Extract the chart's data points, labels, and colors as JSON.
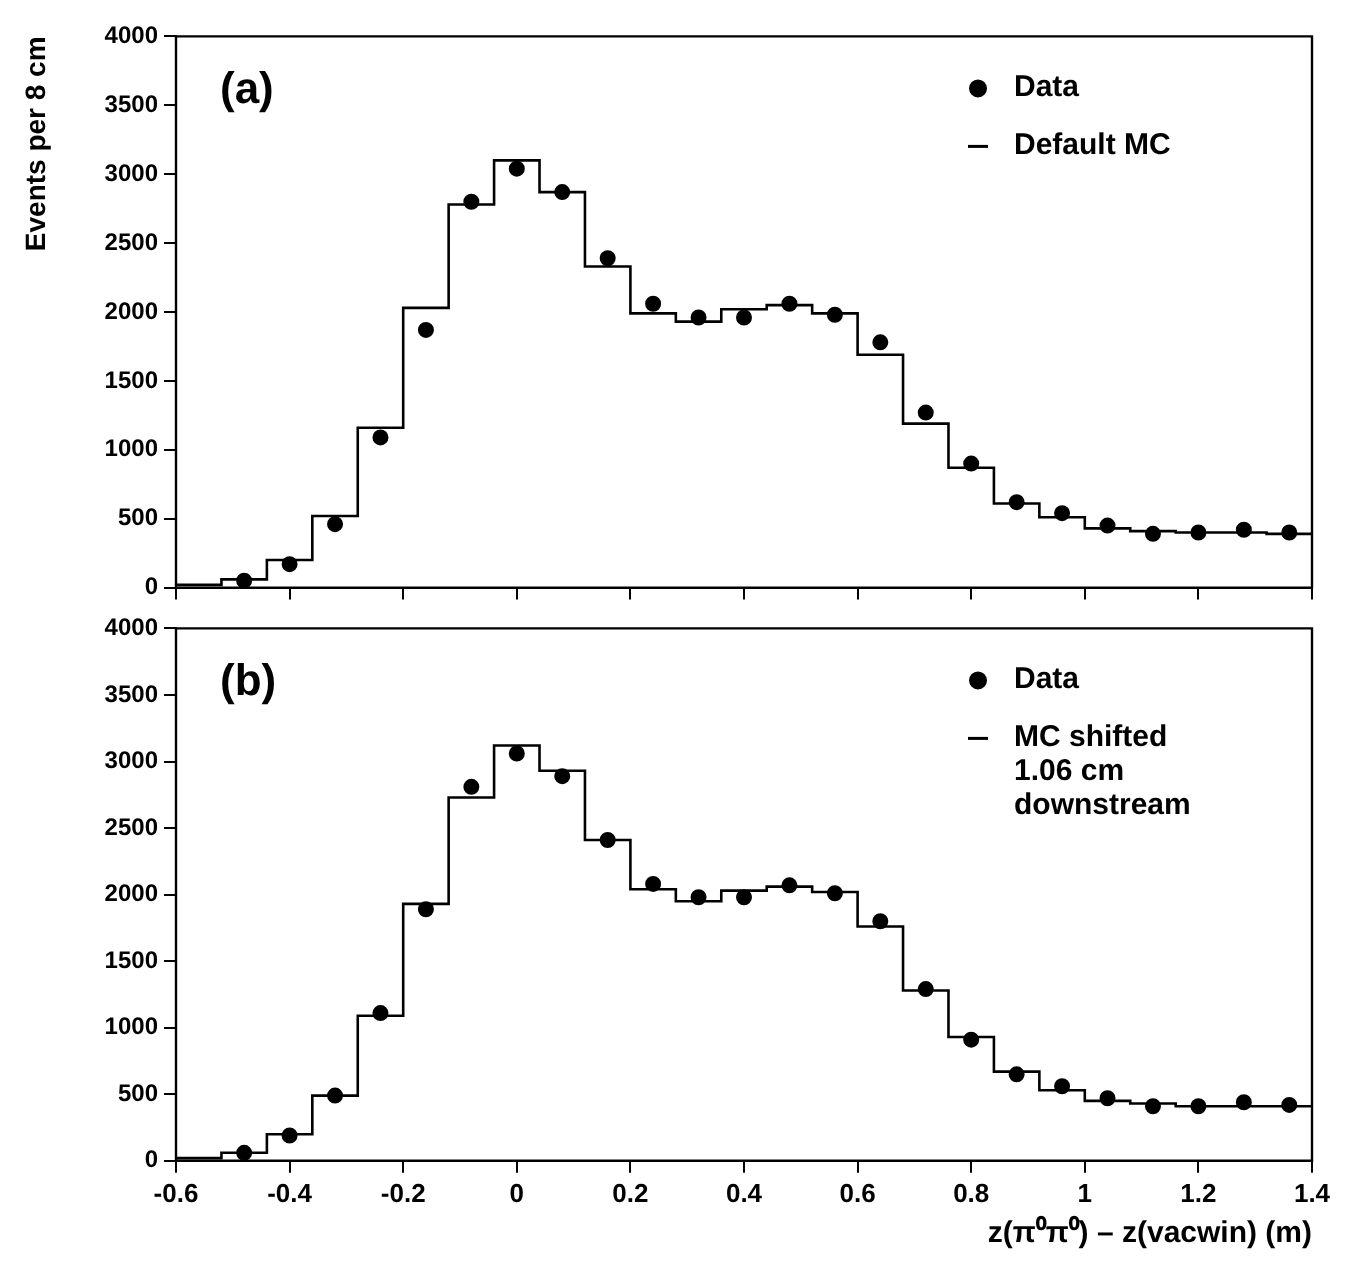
{
  "chart_data": [
    {
      "type": "histogram",
      "ylabel": "Events per 8 cm",
      "annotations": [
        "(a)"
      ],
      "bins": [
        -0.6,
        -0.52,
        -0.44,
        -0.36,
        -0.28,
        -0.2,
        -0.12,
        -0.04,
        0.04,
        0.12,
        0.2,
        0.28,
        0.36,
        0.44,
        0.52,
        0.6,
        0.68,
        0.76,
        0.84,
        0.92,
        1.0,
        1.08,
        1.16,
        1.24,
        1.32,
        1.4
      ],
      "series": [
        {
          "name": "Data",
          "type": "scatter",
          "color": "#000000",
          "x": [
            -0.48,
            -0.4,
            -0.32,
            -0.24,
            -0.16,
            -0.08,
            0,
            0.08,
            0.16,
            0.24,
            0.32,
            0.4,
            0.48,
            0.56,
            0.64,
            0.72,
            0.8,
            0.88,
            0.96,
            1.04,
            1.12,
            1.2,
            1.28,
            1.36
          ],
          "values": [
            50,
            170,
            460,
            1090,
            1870,
            2800,
            3040,
            2870,
            2390,
            2060,
            1960,
            1960,
            2060,
            1980,
            1780,
            1270,
            900,
            620,
            540,
            450,
            390,
            400,
            420,
            400
          ]
        },
        {
          "name": "Default MC",
          "type": "histogram",
          "color": "#000000",
          "values": [
            20,
            60,
            200,
            520,
            1160,
            2030,
            2780,
            3100,
            2870,
            2330,
            1990,
            1930,
            2020,
            2050,
            1990,
            1690,
            1190,
            870,
            610,
            510,
            430,
            410,
            400,
            400,
            390
          ]
        }
      ],
      "xlim": [
        -0.6,
        1.4
      ],
      "xticks": [
        -0.6,
        -0.4,
        -0.2,
        0,
        0.2,
        0.4,
        0.6,
        0.8,
        1,
        1.2,
        1.4
      ],
      "ylim": [
        0,
        4000
      ],
      "yticks": [
        0,
        500,
        1000,
        1500,
        2000,
        2500,
        3000,
        3500,
        4000
      ],
      "tick_labels": "y",
      "legend": "top right",
      "marker": "circle"
    },
    {
      "type": "histogram",
      "xlabel": "z(π⁰π⁰) – z(vacwin) (m)",
      "annotations": [
        "(b)"
      ],
      "bins": [
        -0.6,
        -0.52,
        -0.44,
        -0.36,
        -0.28,
        -0.2,
        -0.12,
        -0.04,
        0.04,
        0.12,
        0.2,
        0.28,
        0.36,
        0.44,
        0.52,
        0.6,
        0.68,
        0.76,
        0.84,
        0.92,
        1.0,
        1.08,
        1.16,
        1.24,
        1.32,
        1.4
      ],
      "series": [
        {
          "name": "Data",
          "type": "scatter",
          "color": "#000000",
          "x": [
            -0.48,
            -0.4,
            -0.32,
            -0.24,
            -0.16,
            -0.08,
            0,
            0.08,
            0.16,
            0.24,
            0.32,
            0.4,
            0.48,
            0.56,
            0.64,
            0.72,
            0.8,
            0.88,
            0.96,
            1.04,
            1.12,
            1.2,
            1.28,
            1.36
          ],
          "values": [
            60,
            190,
            490,
            1110,
            1890,
            2810,
            3060,
            2890,
            2410,
            2080,
            1980,
            1980,
            2070,
            2010,
            1800,
            1290,
            910,
            650,
            560,
            470,
            410,
            410,
            440,
            420
          ]
        },
        {
          "name": "MC shifted 1.06 cm downstream",
          "type": "histogram",
          "color": "#000000",
          "values": [
            20,
            60,
            200,
            490,
            1090,
            1930,
            2730,
            3120,
            2930,
            2410,
            2040,
            1950,
            2030,
            2060,
            2020,
            1760,
            1280,
            930,
            670,
            530,
            450,
            430,
            410,
            410,
            410
          ]
        }
      ],
      "xlim": [
        -0.6,
        1.4
      ],
      "xticks": [
        -0.6,
        -0.4,
        -0.2,
        0,
        0.2,
        0.4,
        0.6,
        0.8,
        1,
        1.2,
        1.4
      ],
      "ylim": [
        0,
        4000
      ],
      "yticks": [
        0,
        500,
        1000,
        1500,
        2000,
        2500,
        3000,
        3500,
        4000
      ],
      "legend": "top right",
      "marker": "circle"
    }
  ]
}
